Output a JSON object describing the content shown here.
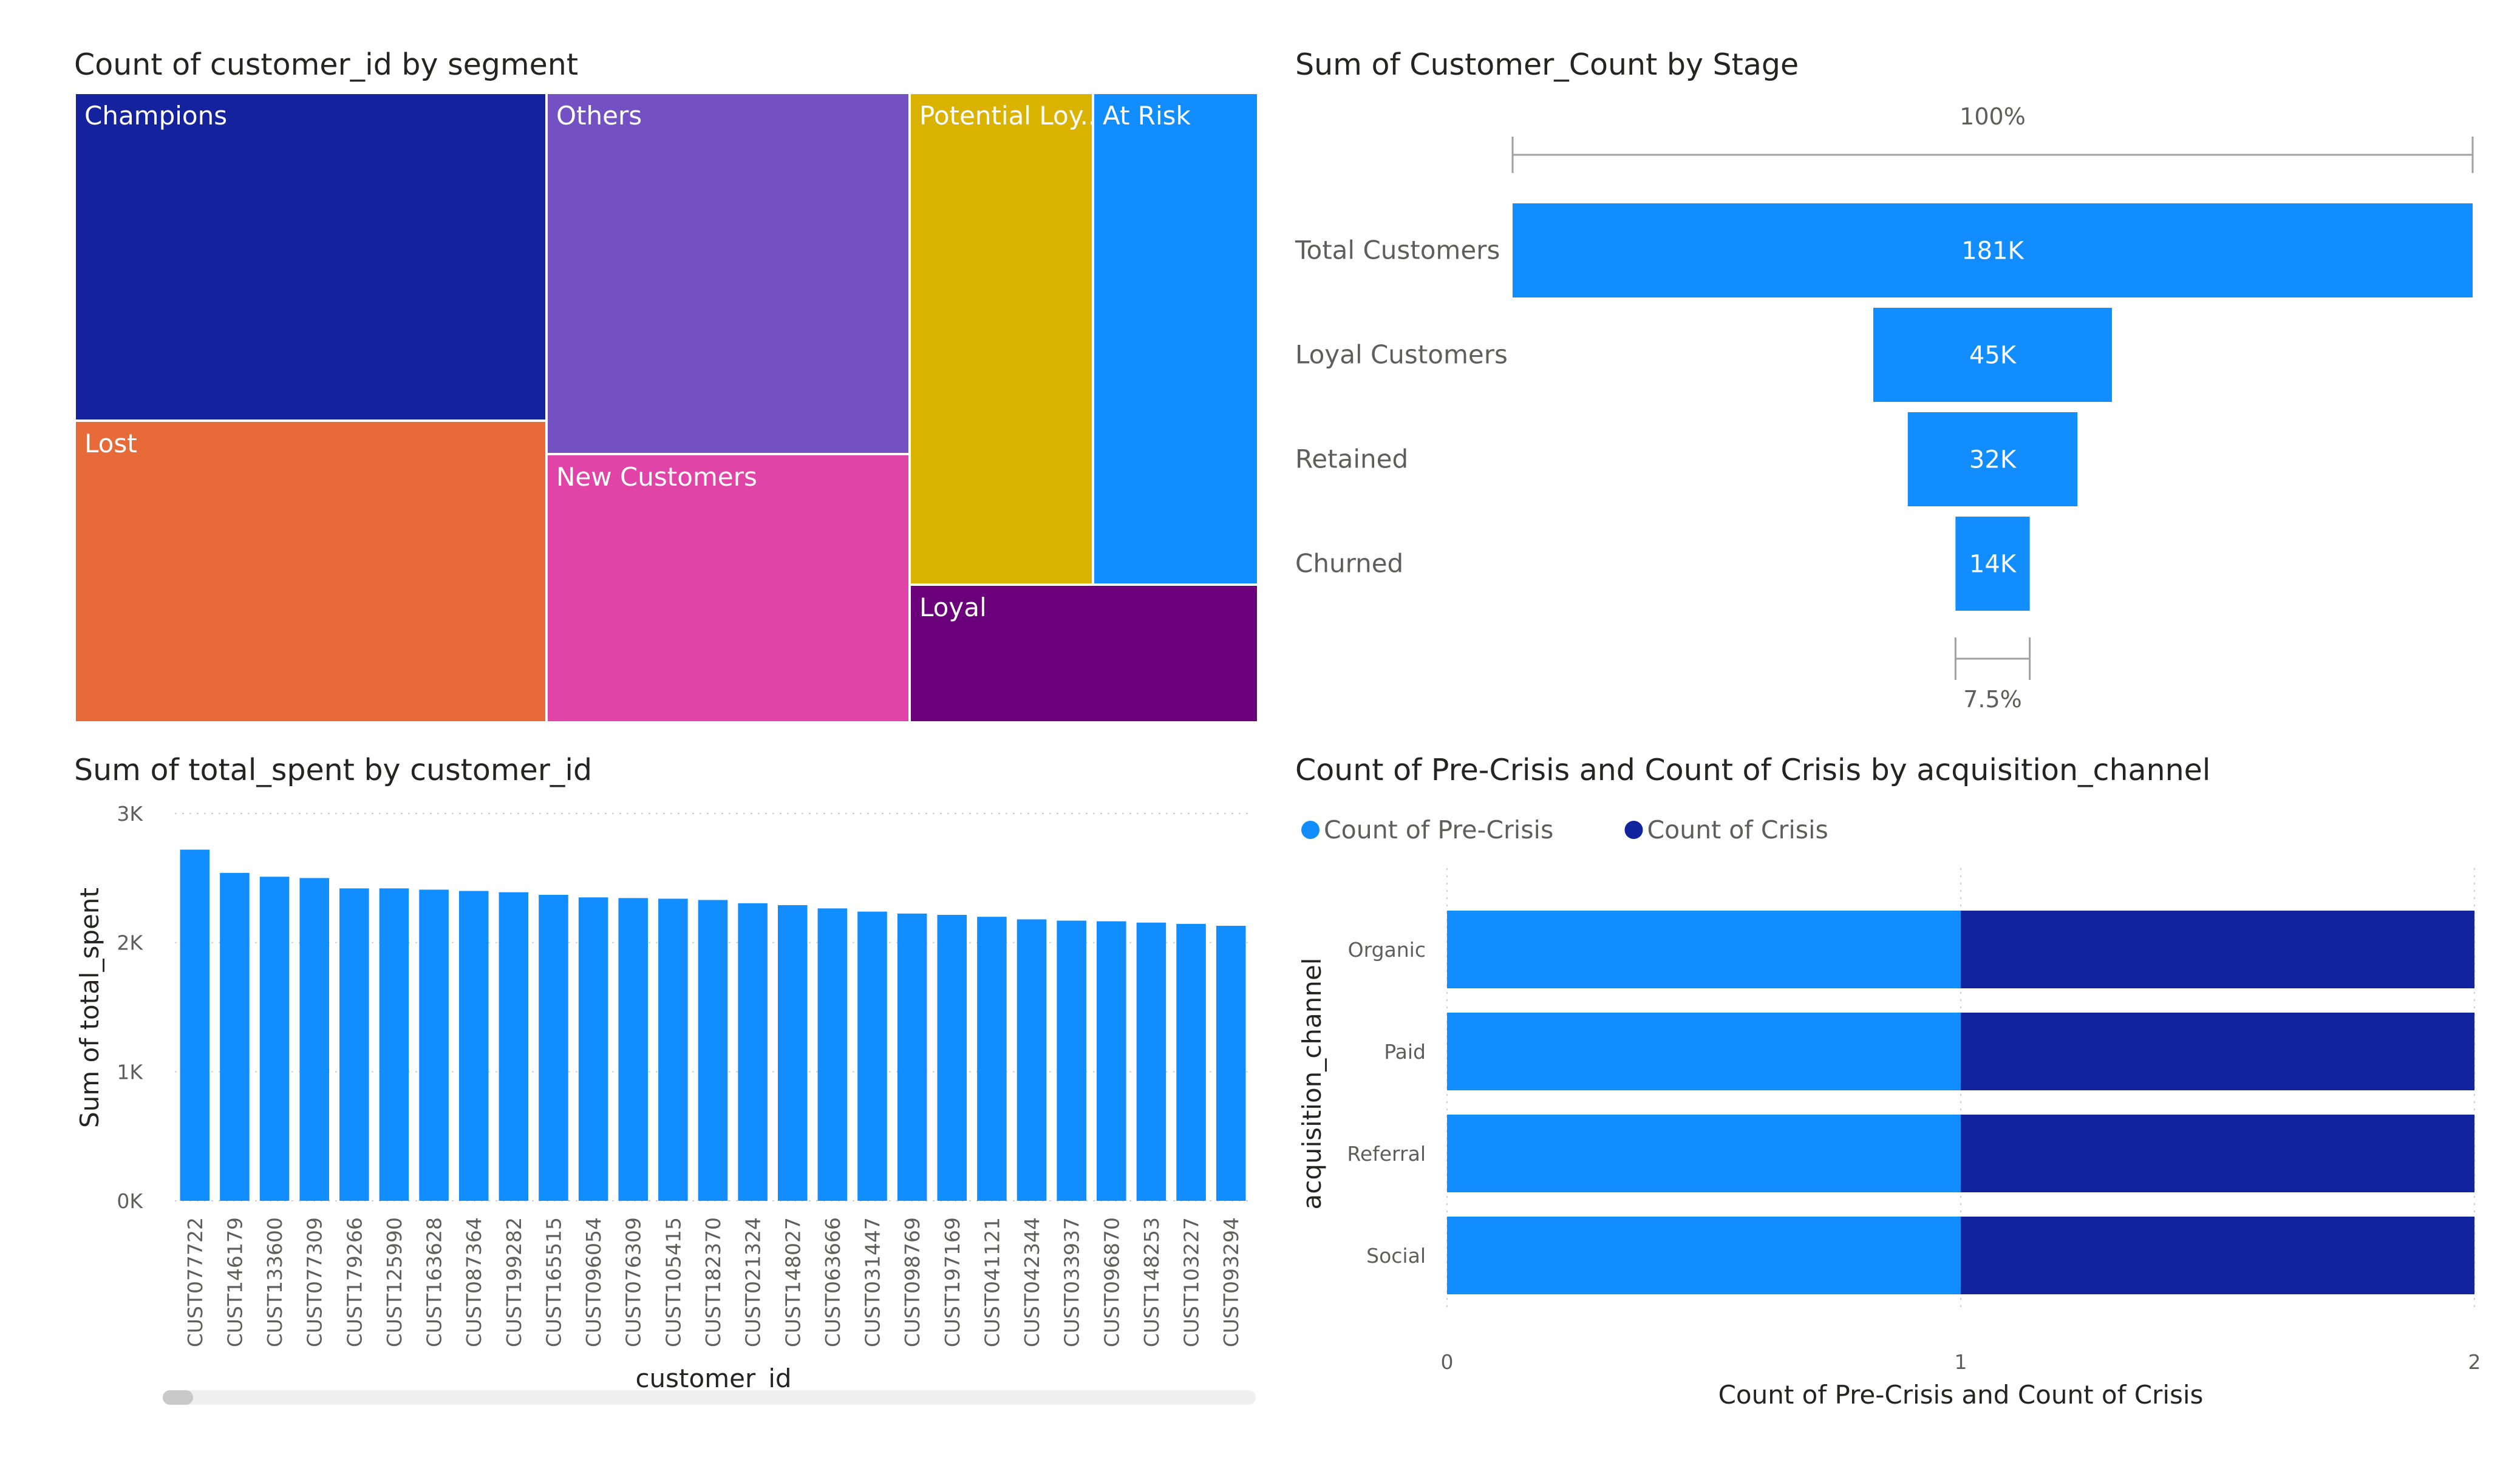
{
  "chart_data": [
    {
      "type": "treemap",
      "title": "Count of customer_id by segment",
      "categories": [
        "Champions",
        "Lost",
        "Others",
        "New Customers",
        "Potential Loy...",
        "At Risk",
        "Loyal"
      ],
      "colors": {
        "Champions": "#14229e",
        "Lost": "#e66b38",
        "Others": "#7451c3",
        "New Customers": "#e044a7",
        "Potential Loy...": "#d9b300",
        "At Risk": "#118dff",
        "Loyal": "#6b007b"
      }
    },
    {
      "type": "funnel",
      "title": "Sum of Customer_Count by Stage",
      "categories": [
        "Total Customers",
        "Loyal Customers",
        "Retained",
        "Churned"
      ],
      "values": [
        181000,
        45000,
        32000,
        14000
      ],
      "value_labels": [
        "181K",
        "45K",
        "32K",
        "14K"
      ],
      "top_percent_label": "100%",
      "bottom_percent_label": "7.5%",
      "color": "#118dff"
    },
    {
      "type": "bar",
      "title": "Sum of total_spent by customer_id",
      "xlabel": "customer_id",
      "ylabel": "Sum of total_spent",
      "ylim": [
        0,
        3000
      ],
      "yticks": [
        0,
        1000,
        2000,
        3000
      ],
      "ytick_labels": [
        "0K",
        "1K",
        "2K",
        "3K"
      ],
      "grid": true,
      "color": "#118dff",
      "categories": [
        "CUST077722",
        "CUST146179",
        "CUST133600",
        "CUST077309",
        "CUST179266",
        "CUST125990",
        "CUST163628",
        "CUST087364",
        "CUST199282",
        "CUST165515",
        "CUST096054",
        "CUST076309",
        "CUST105415",
        "CUST182370",
        "CUST021324",
        "CUST148027",
        "CUST063666",
        "CUST031447",
        "CUST098769",
        "CUST197169",
        "CUST041121",
        "CUST042344",
        "CUST033937",
        "CUST096870",
        "CUST148253",
        "CUST103227",
        "CUST093294"
      ],
      "values": [
        2720,
        2540,
        2510,
        2500,
        2420,
        2420,
        2410,
        2400,
        2390,
        2370,
        2350,
        2345,
        2340,
        2330,
        2305,
        2290,
        2265,
        2240,
        2225,
        2215,
        2200,
        2180,
        2170,
        2165,
        2155,
        2145,
        2130
      ]
    },
    {
      "type": "bar",
      "orientation": "horizontal",
      "stacked": true,
      "title": "Count of Pre-Crisis and Count of Crisis by acquisition_channel",
      "xlabel": "Count of Pre-Crisis and Count of Crisis",
      "ylabel": "acquisition_channel",
      "xlim": [
        0,
        2
      ],
      "xticks": [
        0,
        1,
        2
      ],
      "legend_position": "top-left",
      "categories": [
        "Organic",
        "Paid",
        "Referral",
        "Social"
      ],
      "series": [
        {
          "name": "Count of Pre-Crisis",
          "values": [
            1,
            1,
            1,
            1
          ],
          "color": "#118dff"
        },
        {
          "name": "Count of Crisis",
          "values": [
            1,
            1,
            1,
            1
          ],
          "color": "#12239e"
        }
      ]
    }
  ]
}
